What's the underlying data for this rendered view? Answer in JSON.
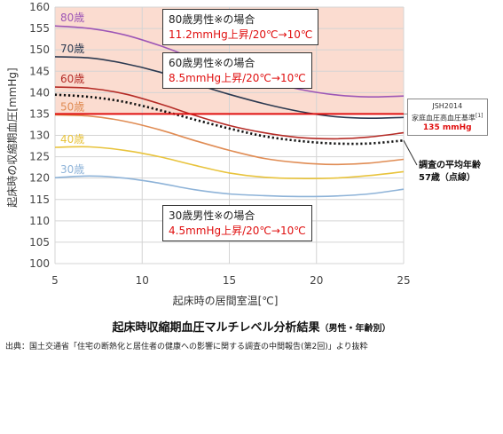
{
  "chart_data": {
    "type": "line",
    "xlabel": "起床時の居間室温[℃]",
    "ylabel": "起床時の収縮期血圧[mmHg]",
    "xlim": [
      5,
      25
    ],
    "ylim": [
      100,
      160
    ],
    "x_ticks": [
      "5",
      "10",
      "15",
      "20",
      "25"
    ],
    "y_ticks": [
      "100",
      "105",
      "110",
      "115",
      "120",
      "125",
      "130",
      "135",
      "140",
      "145",
      "150",
      "155",
      "160"
    ],
    "grid": true,
    "series": [
      {
        "name": "80歳",
        "color": "#9d56b6",
        "x": [
          5,
          7,
          9,
          11,
          13,
          15,
          17,
          19,
          21,
          23,
          25
        ],
        "y": [
          155.6,
          155.0,
          153.5,
          151.0,
          148.0,
          145.3,
          142.8,
          140.8,
          139.5,
          139.0,
          139.2
        ]
      },
      {
        "name": "70歳",
        "color": "#2b3950",
        "x": [
          5,
          7,
          9,
          11,
          13,
          15,
          17,
          19,
          21,
          23,
          25
        ],
        "y": [
          148.4,
          148.1,
          146.8,
          144.8,
          142.1,
          139.6,
          137.4,
          135.6,
          134.4,
          134.0,
          134.2
        ]
      },
      {
        "name": "60歳",
        "color": "#b52b26",
        "x": [
          5,
          7,
          9,
          11,
          13,
          15,
          17,
          19,
          21,
          23,
          25
        ],
        "y": [
          141.3,
          141.0,
          139.7,
          137.4,
          134.7,
          132.3,
          130.6,
          129.5,
          129.2,
          129.6,
          130.6
        ]
      },
      {
        "name": "50歳",
        "color": "#e08c54",
        "x": [
          5,
          7,
          9,
          11,
          13,
          15,
          17,
          19,
          21,
          23,
          25
        ],
        "y": [
          134.8,
          134.5,
          133.3,
          131.3,
          128.8,
          126.5,
          124.6,
          123.6,
          123.2,
          123.5,
          124.4
        ]
      },
      {
        "name": "40歳",
        "color": "#e8c33c",
        "x": [
          5,
          7,
          9,
          11,
          13,
          15,
          17,
          19,
          21,
          23,
          25
        ],
        "y": [
          127.2,
          127.3,
          126.5,
          125.0,
          123.0,
          121.2,
          120.2,
          119.9,
          120.0,
          120.6,
          121.5
        ]
      },
      {
        "name": "30歳",
        "color": "#8eb3d8",
        "x": [
          5,
          7,
          9,
          11,
          13,
          15,
          17,
          19,
          21,
          23,
          25
        ],
        "y": [
          120.1,
          120.5,
          120.0,
          118.8,
          117.3,
          116.3,
          115.9,
          115.7,
          115.8,
          116.3,
          117.4
        ]
      },
      {
        "name": "調査の平均年齢 57歳（点線）",
        "color": "#111111",
        "dashed": true,
        "x": [
          5,
          7,
          9,
          11,
          13,
          15,
          17,
          19,
          21,
          23,
          25
        ],
        "y": [
          139.5,
          139.0,
          137.8,
          135.9,
          133.7,
          131.6,
          129.8,
          128.7,
          128.1,
          128.1,
          128.8
        ]
      }
    ],
    "reference_line": {
      "y": 135,
      "color": "#e01010"
    },
    "shaded_region": {
      "y_from": 135,
      "y_to": 160,
      "color": "#fbdcd0"
    },
    "annotations": [
      {
        "title": "80歳男性※の場合",
        "detail": "11.2mmHg上昇/20℃→10℃"
      },
      {
        "title": "60歳男性※の場合",
        "detail": "8.5mmHg上昇/20℃→10℃"
      },
      {
        "title": "30歳男性※の場合",
        "detail": "4.5mmHg上昇/20℃→10℃"
      }
    ],
    "reference_label": {
      "line1": "JSH2014",
      "line2": "家庭血圧高血圧基準",
      "line2_note": "[1]",
      "line3": "135 mmHg"
    },
    "avg_label": {
      "line1": "調査の平均年齢",
      "line2": "57歳（点線）"
    }
  },
  "title": {
    "main": "起床時収縮期血圧マルチレベル分析結果",
    "sub": "（男性・年齢別）"
  },
  "source": "出典：国土交通省「住宅の断熱化と居住者の健康への影響に関する調査の中間報告(第2回)」より抜粋"
}
